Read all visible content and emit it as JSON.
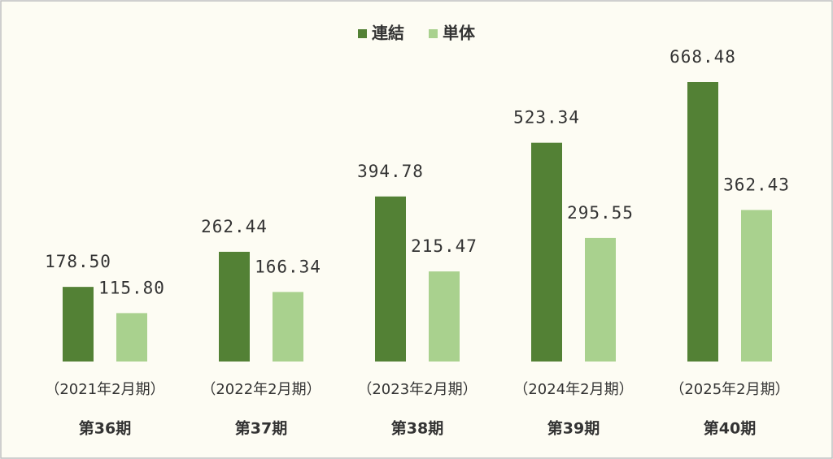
{
  "chart_data": {
    "type": "bar",
    "categories": [
      "（2021年2月期）",
      "（2022年2月期）",
      "（2023年2月期）",
      "（2024年2月期）",
      "（2025年2月期）"
    ],
    "periods": [
      "第36期",
      "第37期",
      "第38期",
      "第39期",
      "第40期"
    ],
    "series": [
      {
        "name": "連結",
        "color": "#538135",
        "values": [
          178.5,
          262.44,
          394.78,
          523.34,
          668.48
        ],
        "value_labels": [
          "178.50",
          "262.44",
          "394.78",
          "523.34",
          "668.48"
        ]
      },
      {
        "name": "単体",
        "color": "#a9d18e",
        "values": [
          115.8,
          166.34,
          215.47,
          295.55,
          362.43
        ],
        "value_labels": [
          "115.80",
          "166.34",
          "215.47",
          "295.55",
          "362.43"
        ]
      }
    ],
    "legend": "top"
  }
}
